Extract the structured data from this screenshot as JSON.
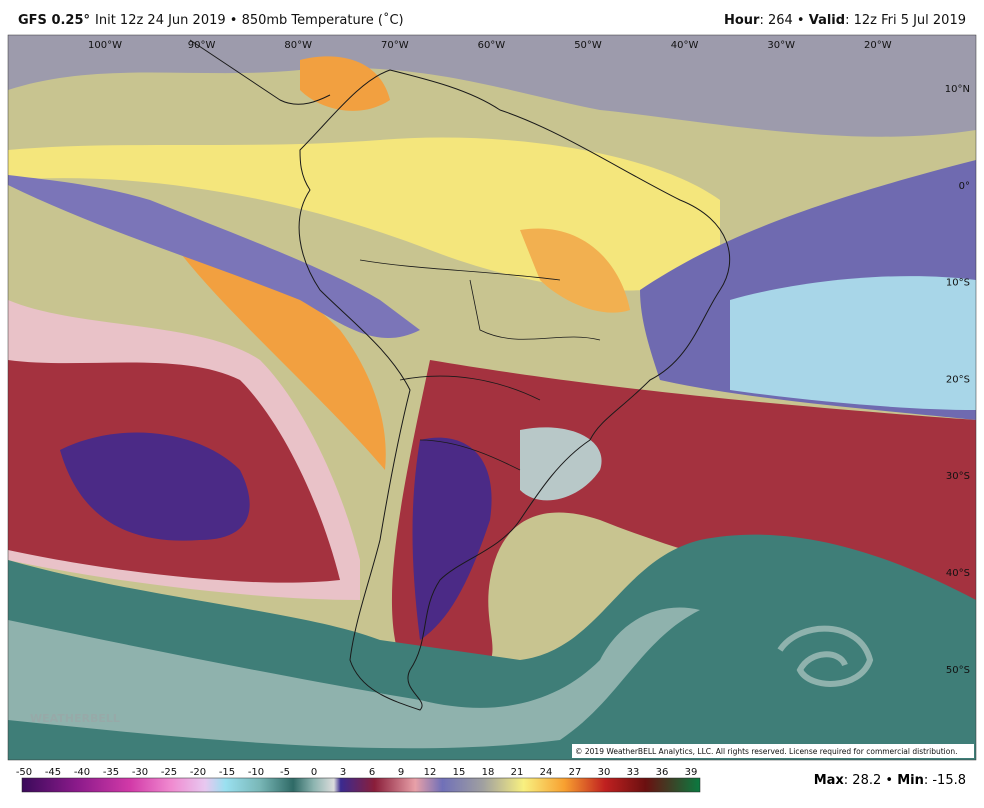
{
  "header": {
    "model": "GFS 0.25°",
    "description": "Init 12z 24 Jun 2019 • 850mb Temperature (˚C)",
    "hour_label": "Hour",
    "hour_value": ": 264 • ",
    "valid_label": "Valid",
    "valid_value": ": 12z Fri 5 Jul 2019"
  },
  "map": {
    "longitudes": [
      "100°W",
      "90°W",
      "80°W",
      "70°W",
      "60°W",
      "50°W",
      "40°W",
      "30°W",
      "20°W"
    ],
    "latitudes": [
      "10°N",
      "0°",
      "10°S",
      "20°S",
      "30°S",
      "40°S",
      "50°S"
    ],
    "watermark": "WEATHERBELL",
    "copyright": "© 2019 WeatherBELL Analytics, LLC. All rights reserved. License required for commercial distribution."
  },
  "colorbar": {
    "ticks": [
      -50,
      -45,
      -40,
      -35,
      -30,
      -25,
      -20,
      -15,
      -10,
      -5,
      0,
      3,
      6,
      9,
      12,
      15,
      18,
      21,
      24,
      27,
      30,
      33,
      36,
      39
    ]
  },
  "footer": {
    "max_label": "Max",
    "max_value": ": 28.2 • ",
    "min_label": "Min",
    "min_value": ": -15.8"
  }
}
